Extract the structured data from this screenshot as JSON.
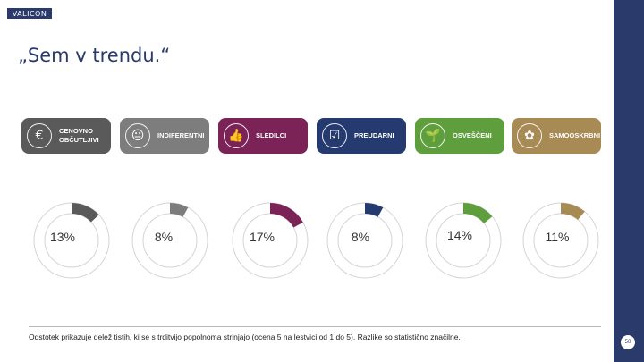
{
  "brand": {
    "logo_text": "VALICON"
  },
  "slide": {
    "title": "„Sem v trendu.“",
    "page_number": "50"
  },
  "segments": [
    {
      "label": "CENOVNO OBČUTLJIVI",
      "icon": "euro-icon",
      "color": "#5a5a5a",
      "percent_label": "13%",
      "percent": 13
    },
    {
      "label": "INDIFERENTNI",
      "icon": "neutral-face-icon",
      "color": "#7d7d7d",
      "percent_label": "8%",
      "percent": 8
    },
    {
      "label": "SLEDILCI",
      "icon": "thumbs-up-icon",
      "color": "#7b2256",
      "percent_label": "17%",
      "percent": 17
    },
    {
      "label": "PREUDARNI",
      "icon": "checklist-icon",
      "color": "#253a6e",
      "percent_label": "8%",
      "percent": 8
    },
    {
      "label": "OSVEŠČENI",
      "icon": "seedling-icon",
      "color": "#5e9e3d",
      "percent_label": "14%",
      "percent": 14
    },
    {
      "label": "SAMOOSKRBNI",
      "icon": "garden-icon",
      "color": "#a88a55",
      "percent_label": "11%",
      "percent": 11
    }
  ],
  "footnote": "Odstotek prikazuje delež tistih, ki se s trditvijo popolnoma strinjajo (ocena 5 na lestvici od 1 do 5). Razlike so statistično značilne."
}
